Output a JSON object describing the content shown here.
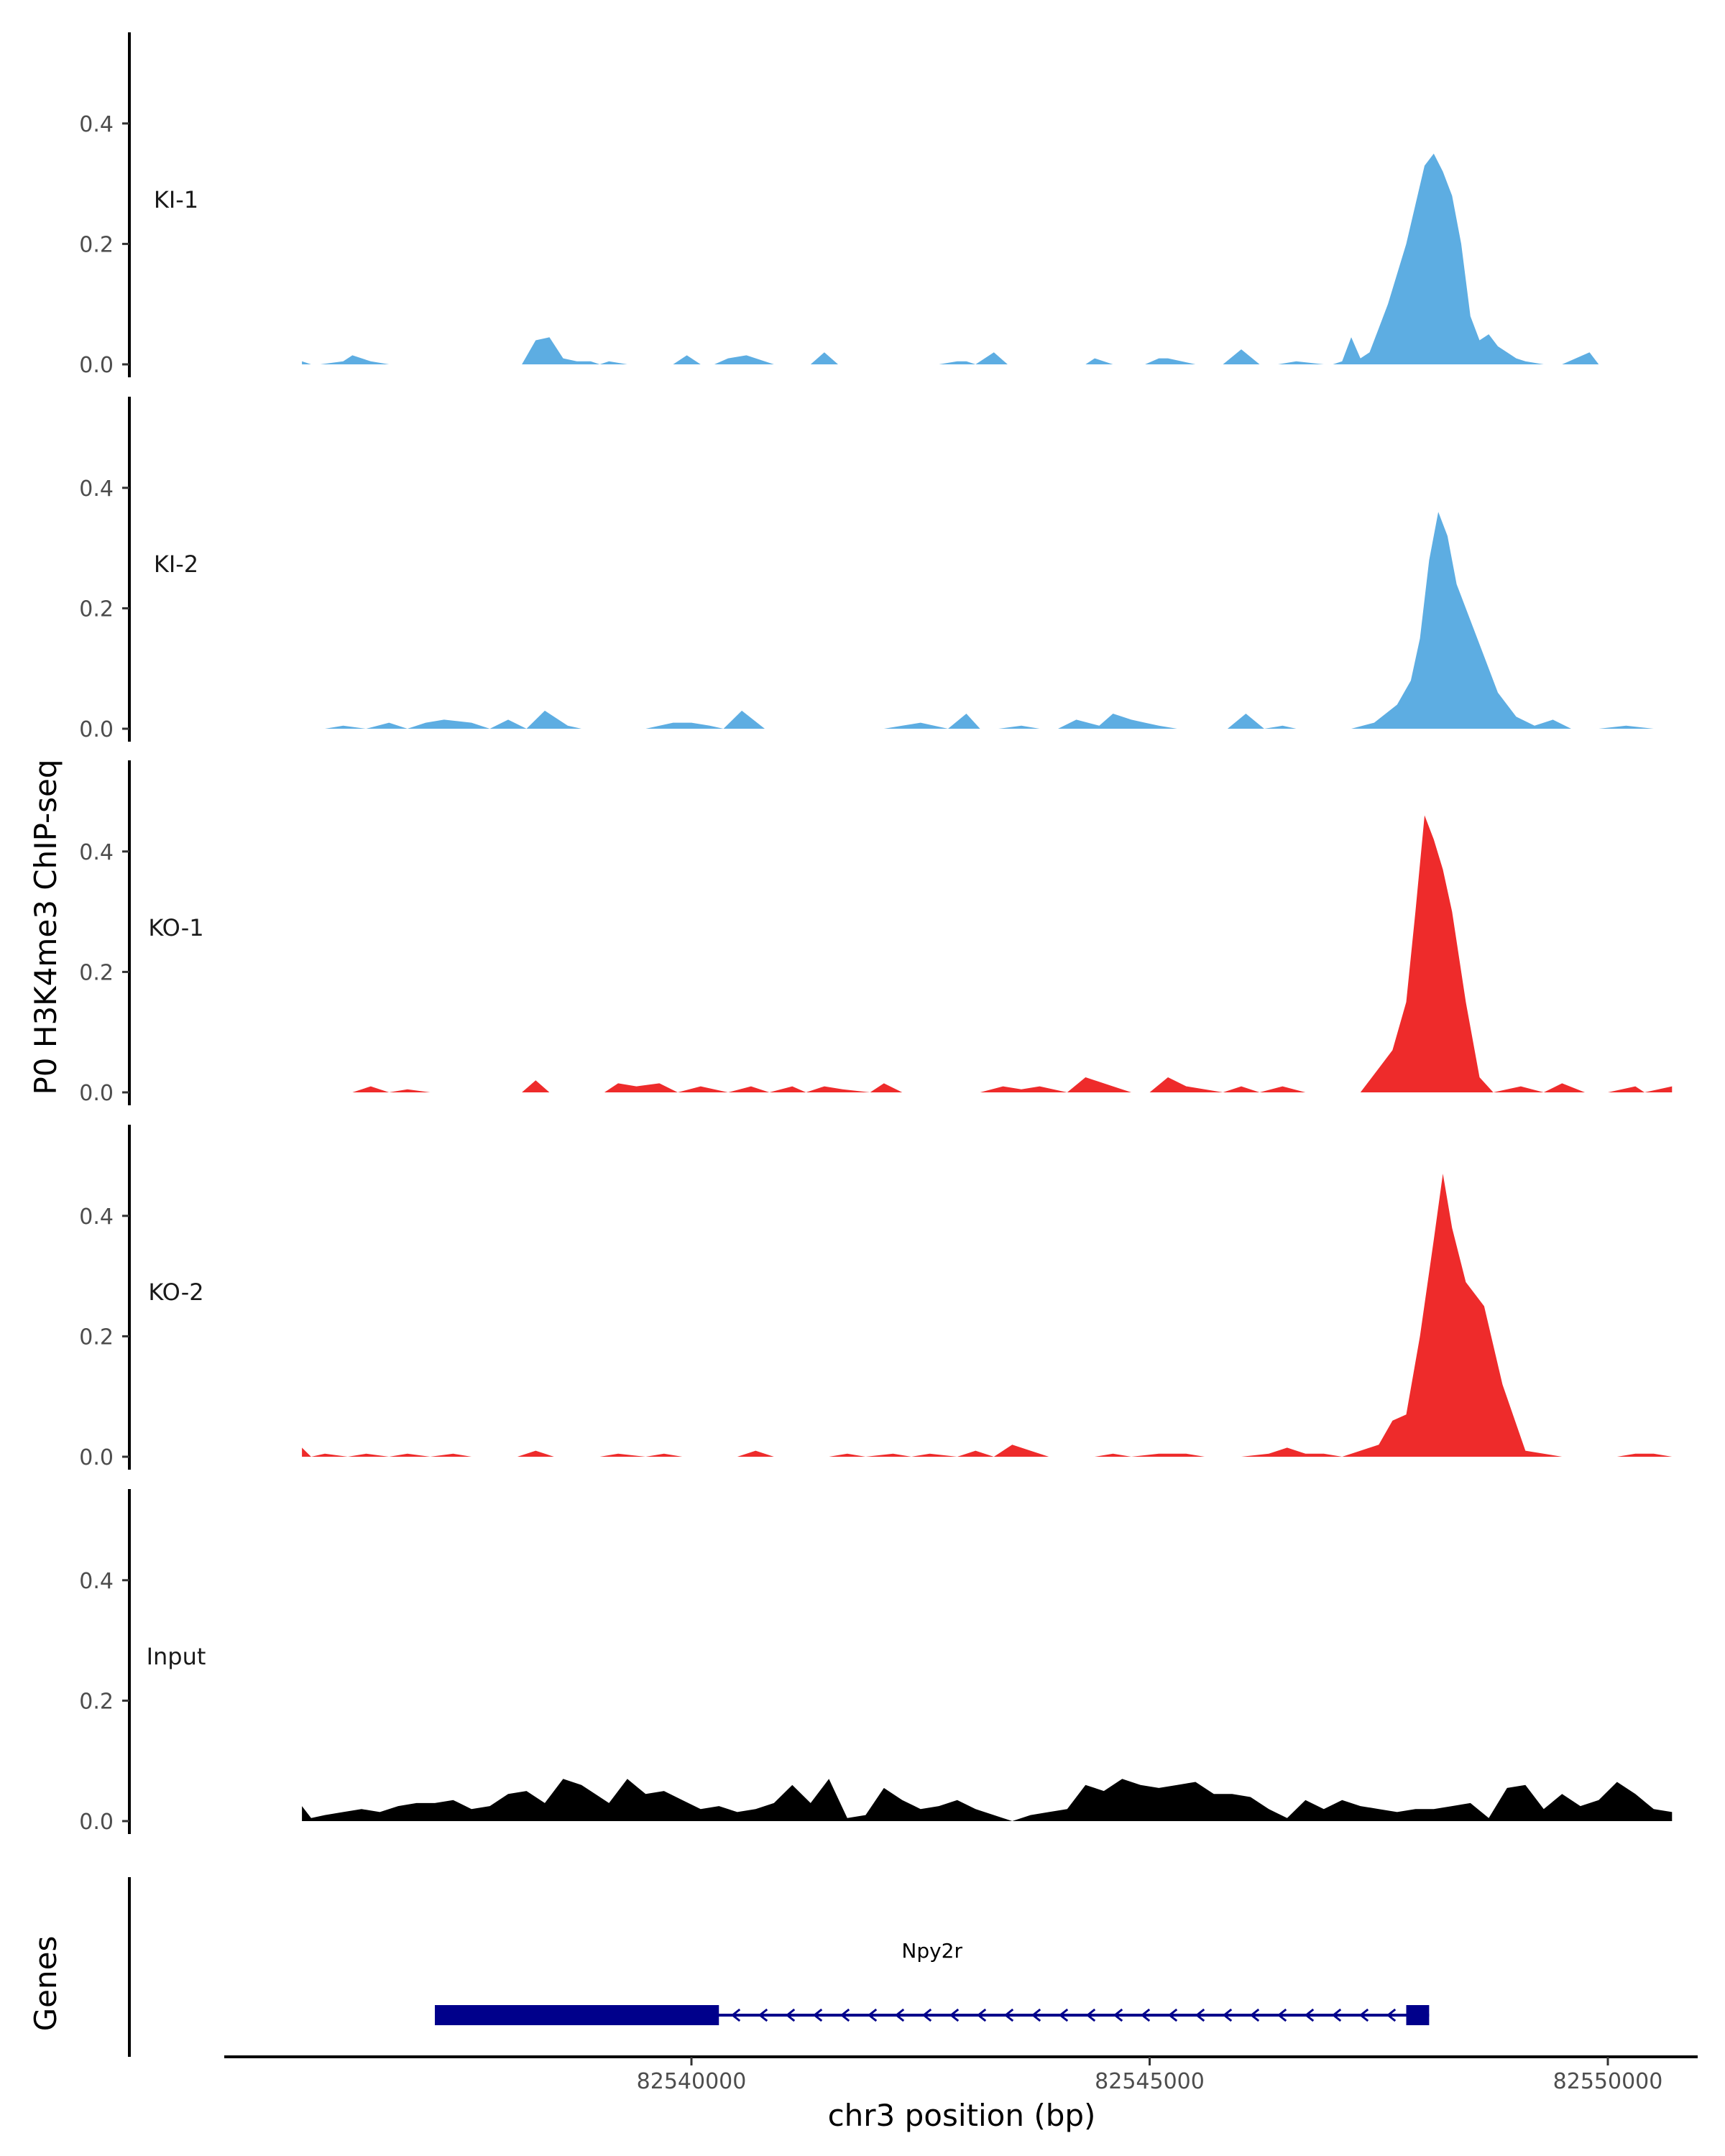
{
  "chart_data": {
    "type": "area",
    "ylabel": "P0 H3K4me3 ChIP-seq",
    "xlabel": "chr3 position (bp)",
    "genes_label": "Genes",
    "xlim": [
      82534000,
      82550900
    ],
    "x_ticks": [
      82540000,
      82545000,
      82550000
    ],
    "x_tick_labels": [
      "82540000",
      "82545000",
      "82550000"
    ],
    "ylim": [
      0,
      0.55
    ],
    "y_ticks": [
      0.0,
      0.2,
      0.4
    ],
    "y_tick_labels": [
      "0.0",
      "0.2",
      "0.4"
    ],
    "tracks": [
      {
        "name": "KI-1",
        "color": "#5DADE2",
        "x": [
          82535750,
          82535850,
          82535950,
          82536200,
          82536300,
          82536500,
          82536700,
          82536850,
          82537200,
          82537300,
          82538150,
          82538300,
          82538450,
          82538600,
          82538750,
          82538900,
          82539000,
          82539100,
          82539300,
          82539450,
          82539800,
          82539950,
          82540100,
          82540250,
          82540400,
          82540600,
          82540800,
          82540900,
          82541000,
          82541300,
          82541450,
          82541600,
          82542700,
          82542900,
          82543000,
          82543100,
          82543300,
          82543450,
          82543700,
          82543800,
          82543950,
          82544300,
          82544400,
          82544600,
          82544800,
          82544950,
          82545100,
          82545200,
          82545350,
          82545500,
          82545600,
          82545700,
          82545800,
          82546000,
          82546200,
          82546400,
          82546600,
          82546900,
          82547000,
          82547100,
          82547200,
          82547300,
          82547400,
          82547500,
          82547600,
          82547800,
          82548000,
          82548100,
          82548200,
          82548300,
          82548400,
          82548500,
          82548600,
          82548700,
          82548800,
          82548900,
          82549000,
          82549100,
          82549300,
          82549500,
          82549800,
          82549900,
          82550100,
          82550300
        ],
        "y": [
          0.005,
          0.0,
          0.0,
          0.005,
          0.015,
          0.005,
          0.0,
          0.0,
          0.0,
          0.0,
          0.0,
          0.04,
          0.045,
          0.01,
          0.005,
          0.005,
          0.0,
          0.005,
          0.0,
          0.0,
          0.0,
          0.015,
          0.0,
          0.0,
          0.01,
          0.015,
          0.005,
          0.0,
          0.0,
          0.0,
          0.02,
          0.0,
          0.0,
          0.005,
          0.005,
          0.0,
          0.02,
          0.0,
          0.0,
          0.0,
          0.0,
          0.0,
          0.01,
          0.0,
          0.0,
          0.0,
          0.01,
          0.01,
          0.005,
          0.0,
          0.0,
          0.0,
          0.0,
          0.025,
          0.0,
          0.0,
          0.005,
          0.0,
          0.0,
          0.005,
          0.045,
          0.01,
          0.02,
          0.06,
          0.1,
          0.2,
          0.33,
          0.35,
          0.32,
          0.28,
          0.2,
          0.08,
          0.04,
          0.05,
          0.03,
          0.02,
          0.01,
          0.005,
          0.0,
          0.0,
          0.02,
          0.0,
          0.0,
          0.0
        ]
      },
      {
        "name": "KI-2",
        "color": "#5DADE2",
        "x": [
          82536000,
          82536200,
          82536450,
          82536700,
          82536900,
          82537100,
          82537300,
          82537600,
          82537800,
          82538000,
          82538200,
          82538400,
          82538650,
          82538800,
          82539500,
          82539800,
          82540000,
          82540200,
          82540350,
          82540550,
          82540800,
          82541000,
          82542100,
          82542300,
          82542500,
          82542800,
          82543000,
          82543150,
          82543350,
          82543600,
          82543800,
          82544000,
          82544200,
          82544450,
          82544600,
          82544800,
          82544950,
          82545100,
          82545300,
          82545850,
          82546050,
          82546250,
          82546450,
          82546600,
          82546800,
          82547200,
          82547450,
          82547700,
          82547850,
          82547950,
          82548050,
          82548150,
          82548250,
          82548350,
          82548500,
          82548650,
          82548800,
          82549000,
          82549200,
          82549400,
          82549600,
          82549900,
          82550200,
          82550500,
          82550900
        ],
        "y": [
          0.0,
          0.005,
          0.0,
          0.01,
          0.0,
          0.01,
          0.015,
          0.01,
          0.0,
          0.015,
          0.0,
          0.03,
          0.005,
          0.0,
          0.0,
          0.01,
          0.01,
          0.005,
          0.0,
          0.03,
          0.0,
          0.0,
          0.0,
          0.005,
          0.01,
          0.0,
          0.025,
          0.0,
          0.0,
          0.005,
          0.0,
          0.0,
          0.015,
          0.005,
          0.025,
          0.015,
          0.01,
          0.005,
          0.0,
          0.0,
          0.025,
          0.0,
          0.005,
          0.0,
          0.0,
          0.0,
          0.01,
          0.04,
          0.08,
          0.15,
          0.28,
          0.36,
          0.32,
          0.24,
          0.18,
          0.12,
          0.06,
          0.02,
          0.005,
          0.015,
          0.0,
          0.0,
          0.005,
          0.0,
          0.0
        ]
      },
      {
        "name": "KO-1",
        "color": "#EE2B2B",
        "x": [
          82535750,
          82535950,
          82536300,
          82536500,
          82536700,
          82536900,
          82537150,
          82537300,
          82538150,
          82538300,
          82538450,
          82539050,
          82539200,
          82539400,
          82539650,
          82539850,
          82540100,
          82540400,
          82540650,
          82540850,
          82541100,
          82541250,
          82541450,
          82541650,
          82541950,
          82542100,
          82542300,
          82543150,
          82543400,
          82543600,
          82543800,
          82544100,
          82544300,
          82544600,
          82544800,
          82545000,
          82545200,
          82545400,
          82545600,
          82545800,
          82546000,
          82546200,
          82546450,
          82546700,
          82546900,
          82547100,
          82547300,
          82547500,
          82547650,
          82547800,
          82547900,
          82548000,
          82548100,
          82548200,
          82548300,
          82548450,
          82548600,
          82548750,
          82548900,
          82549050,
          82549300,
          82549500,
          82549750,
          82550000,
          82550300,
          82550400,
          82550700
        ],
        "y": [
          0.0,
          0.0,
          0.0,
          0.01,
          0.0,
          0.005,
          0.0,
          0.0,
          0.0,
          0.02,
          0.0,
          0.0,
          0.015,
          0.01,
          0.015,
          0.0,
          0.01,
          0.0,
          0.01,
          0.0,
          0.01,
          0.0,
          0.01,
          0.005,
          0.0,
          0.015,
          0.0,
          0.0,
          0.01,
          0.005,
          0.01,
          0.0,
          0.025,
          0.01,
          0.0,
          0.0,
          0.025,
          0.01,
          0.005,
          0.0,
          0.01,
          0.0,
          0.01,
          0.0,
          0.0,
          0.0,
          0.0,
          0.04,
          0.07,
          0.15,
          0.3,
          0.46,
          0.42,
          0.37,
          0.3,
          0.15,
          0.025,
          0.0,
          0.005,
          0.01,
          0.0,
          0.015,
          0.0,
          0.0,
          0.01,
          0.0,
          0.01
        ]
      },
      {
        "name": "KO-2",
        "color": "#EE2B2B",
        "x": [
          82535750,
          82535850,
          82536000,
          82536250,
          82536450,
          82536700,
          82536900,
          82537150,
          82537400,
          82537600,
          82538100,
          82538300,
          82538500,
          82539000,
          82539200,
          82539500,
          82539700,
          82539900,
          82540500,
          82540700,
          82540900,
          82541500,
          82541700,
          82541900,
          82542200,
          82542400,
          82542600,
          82542900,
          82543100,
          82543300,
          82543500,
          82543700,
          82543900,
          82544400,
          82544600,
          82544800,
          82545100,
          82545400,
          82545600,
          82546000,
          82546300,
          82546500,
          82546700,
          82546900,
          82547100,
          82547300,
          82547500,
          82547650,
          82547800,
          82547950,
          82548100,
          82548200,
          82548300,
          82548450,
          82548650,
          82548850,
          82549100,
          82549500,
          82550100,
          82550300,
          82550500,
          82550700
        ],
        "y": [
          0.015,
          0.0,
          0.005,
          0.0,
          0.005,
          0.0,
          0.005,
          0.0,
          0.005,
          0.0,
          0.0,
          0.01,
          0.0,
          0.0,
          0.005,
          0.0,
          0.005,
          0.0,
          0.0,
          0.01,
          0.0,
          0.0,
          0.005,
          0.0,
          0.005,
          0.0,
          0.005,
          0.0,
          0.01,
          0.0,
          0.02,
          0.01,
          0.0,
          0.0,
          0.005,
          0.0,
          0.005,
          0.005,
          0.0,
          0.0,
          0.005,
          0.015,
          0.005,
          0.005,
          0.0,
          0.01,
          0.02,
          0.06,
          0.07,
          0.2,
          0.36,
          0.47,
          0.38,
          0.29,
          0.25,
          0.12,
          0.01,
          0.0,
          0.0,
          0.005,
          0.005,
          0.0
        ],
        "color2": "#EE2B2B"
      },
      {
        "name": "Input",
        "color": "#000000",
        "x": [
          82535750,
          82535850,
          82536000,
          82536200,
          82536400,
          82536600,
          82536800,
          82537000,
          82537200,
          82537400,
          82537600,
          82537800,
          82538000,
          82538200,
          82538400,
          82538600,
          82538800,
          82538950,
          82539100,
          82539300,
          82539500,
          82539700,
          82539900,
          82540100,
          82540300,
          82540500,
          82540700,
          82540900,
          82541100,
          82541300,
          82541500,
          82541700,
          82541900,
          82542100,
          82542300,
          82542500,
          82542700,
          82542900,
          82543100,
          82543300,
          82543500,
          82543700,
          82543900,
          82544100,
          82544300,
          82544500,
          82544700,
          82544900,
          82545100,
          82545300,
          82545500,
          82545700,
          82545900,
          82546100,
          82546300,
          82546500,
          82546700,
          82546900,
          82547100,
          82547300,
          82547500,
          82547700,
          82547900,
          82548100,
          82548300,
          82548500,
          82548700,
          82548900,
          82549100,
          82549300,
          82549500,
          82549700,
          82549900,
          82550100,
          82550300,
          82550500,
          82550700
        ],
        "y": [
          0.025,
          0.005,
          0.01,
          0.015,
          0.02,
          0.015,
          0.025,
          0.03,
          0.03,
          0.035,
          0.02,
          0.025,
          0.045,
          0.05,
          0.03,
          0.07,
          0.06,
          0.045,
          0.03,
          0.07,
          0.045,
          0.05,
          0.035,
          0.02,
          0.025,
          0.015,
          0.02,
          0.03,
          0.06,
          0.03,
          0.07,
          0.005,
          0.01,
          0.055,
          0.035,
          0.02,
          0.025,
          0.035,
          0.02,
          0.01,
          0.0,
          0.01,
          0.015,
          0.02,
          0.06,
          0.05,
          0.07,
          0.06,
          0.055,
          0.06,
          0.065,
          0.045,
          0.045,
          0.04,
          0.02,
          0.005,
          0.035,
          0.02,
          0.035,
          0.025,
          0.02,
          0.015,
          0.02,
          0.02,
          0.025,
          0.03,
          0.005,
          0.055,
          0.06,
          0.02,
          0.045,
          0.025,
          0.035,
          0.065,
          0.045,
          0.02,
          0.015
        ]
      }
    ],
    "gene": {
      "name": "Npy2r",
      "color": "#00008B",
      "start": 82537200,
      "end": 82548050,
      "strand": "-",
      "thick_blocks": [
        [
          82537200,
          82540300
        ],
        [
          82547800,
          82548050
        ]
      ]
    }
  }
}
